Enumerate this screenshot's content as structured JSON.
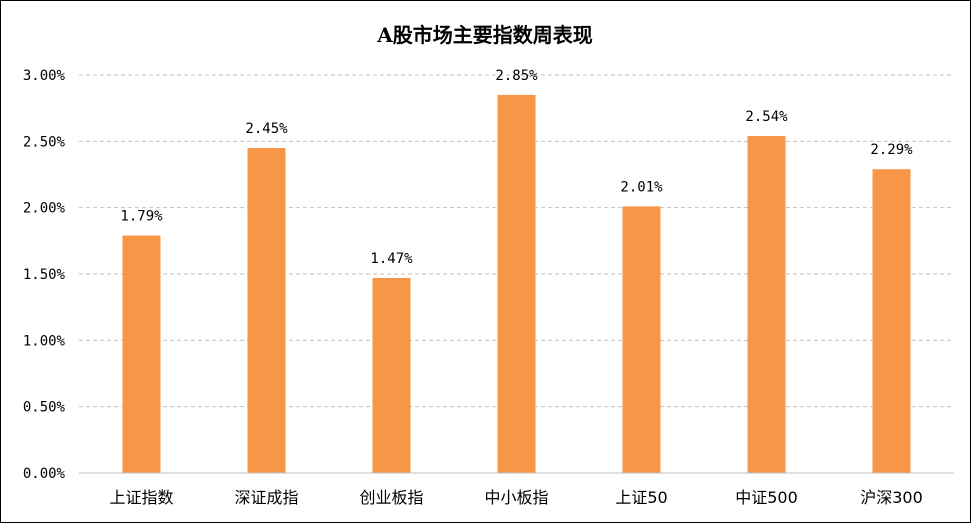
{
  "chart_data": {
    "type": "bar",
    "title": "A股市场主要指数周表现",
    "categories": [
      "上证指数",
      "深证成指",
      "创业板指",
      "中小板指",
      "上证50",
      "中证500",
      "沪深300"
    ],
    "values": [
      1.79,
      2.45,
      1.47,
      2.85,
      2.01,
      2.54,
      2.29
    ],
    "data_labels": [
      "1.79%",
      "2.45%",
      "1.47%",
      "2.85%",
      "2.01%",
      "2.54%",
      "2.29%"
    ],
    "ylim": [
      0,
      3.0
    ],
    "y_ticks": [
      0,
      0.5,
      1.0,
      1.5,
      2.0,
      2.5,
      3.0
    ],
    "y_tick_labels": [
      "0.00%",
      "0.50%",
      "1.00%",
      "1.50%",
      "2.00%",
      "2.50%",
      "3.00%"
    ],
    "xlabel": "",
    "ylabel": "",
    "grid": true,
    "legend": "none",
    "bar_color": "#F79646",
    "grid_color": "#C0C0C0",
    "axis_color": "#BFBFBF"
  }
}
